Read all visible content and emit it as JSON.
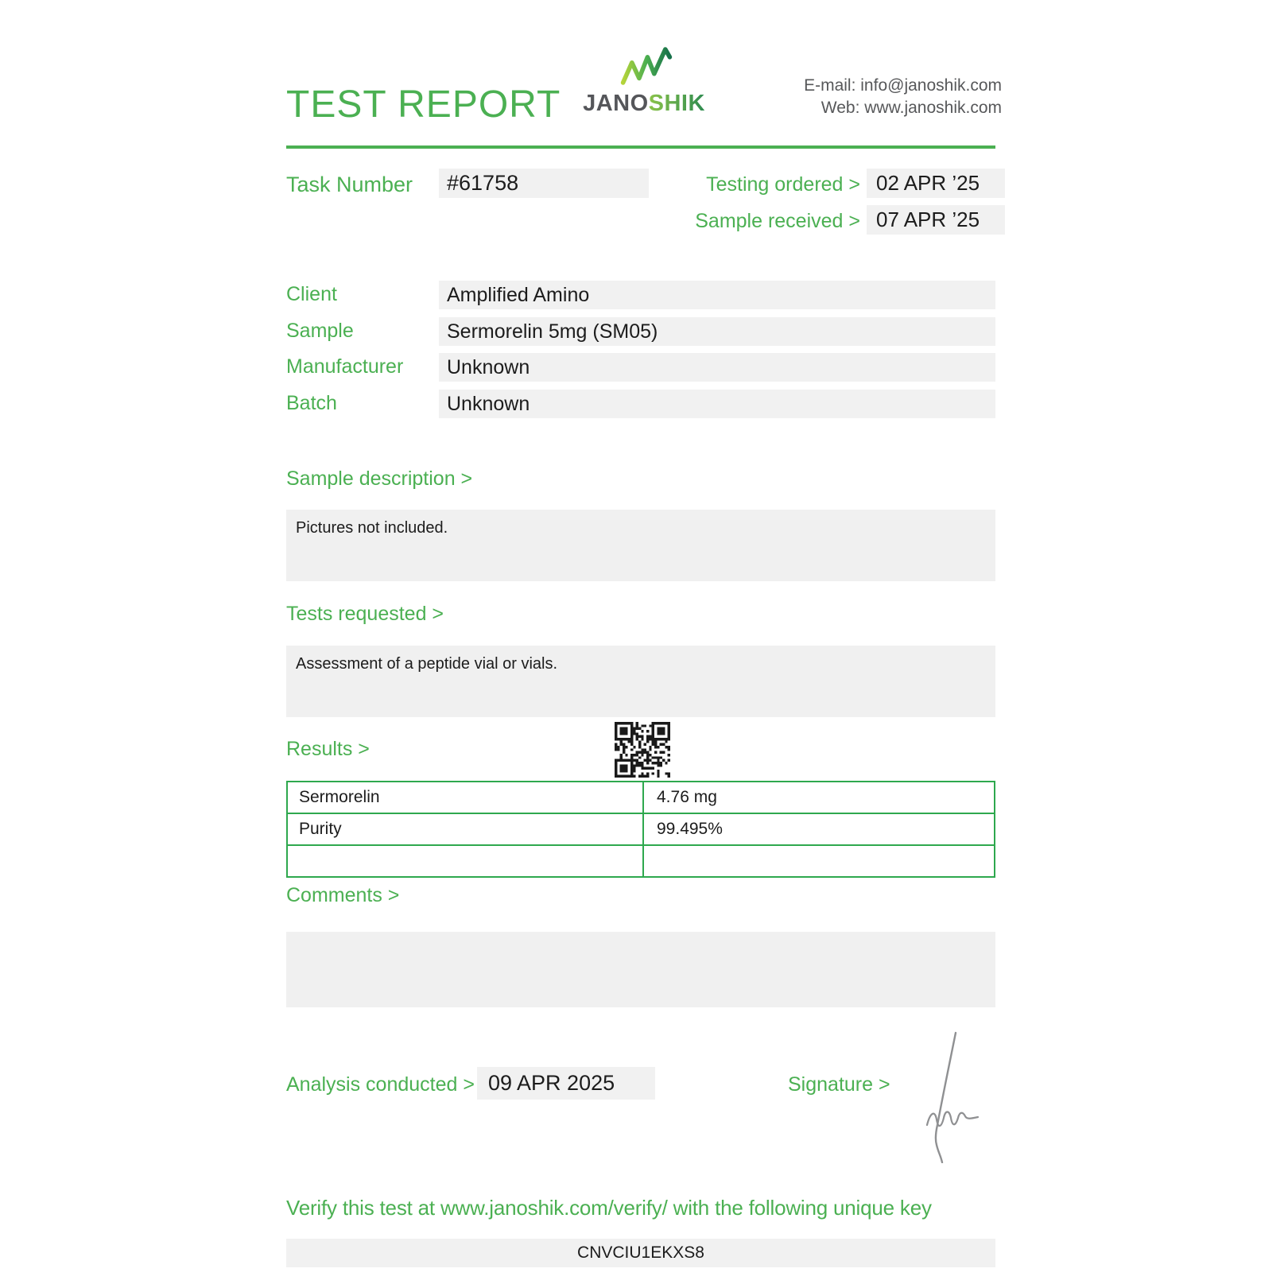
{
  "colors": {
    "green": "#4bb052",
    "table_border": "#2ea84e",
    "box_bg": "#f1f1f1",
    "dark_text": "#1c1c1c",
    "gray_text": "#57585a"
  },
  "header": {
    "title": "TEST REPORT",
    "brand": {
      "jano": "JANO",
      "shik": "SHIK"
    },
    "contact": {
      "email_line": "E-mail: info@janoshik.com",
      "web_line": "Web: www.janoshik.com"
    }
  },
  "meta": {
    "task_number_label": "Task Number",
    "task_number": "#61758",
    "testing_ordered_label": "Testing ordered  >",
    "testing_ordered": "02 APR ’25",
    "sample_received_label": "Sample received >",
    "sample_received": "07 APR ’25"
  },
  "info": {
    "rows": [
      {
        "label": "Client",
        "value": "Amplified Amino"
      },
      {
        "label": "Sample",
        "value": "Sermorelin 5mg (SM05)"
      },
      {
        "label": "Manufacturer",
        "value": "Unknown"
      },
      {
        "label": "Batch",
        "value": "Unknown"
      }
    ]
  },
  "sections": {
    "sample_description": {
      "label": "Sample description >",
      "text": "Pictures not included."
    },
    "tests_requested": {
      "label": "Tests requested >",
      "text": "Assessment of a peptide vial or vials."
    },
    "results": {
      "label": "Results >",
      "rows": [
        {
          "name": "Sermorelin",
          "value": "4.76 mg"
        },
        {
          "name": "Purity",
          "value": "99.495%"
        },
        {
          "name": "",
          "value": ""
        }
      ]
    },
    "comments": {
      "label": "Comments >",
      "text": ""
    }
  },
  "footer": {
    "analysis_label": "Analysis conducted >",
    "analysis_date": "09 APR 2025",
    "signature_label": "Signature >",
    "verify_text": "Verify this test at www.janoshik.com/verify/ with the following unique key",
    "unique_key": "CNVCIU1EKXS8"
  },
  "icons": {
    "logo": "janoshik-chart-icon",
    "qr": "qr-code",
    "signature": "handwritten-signature"
  }
}
